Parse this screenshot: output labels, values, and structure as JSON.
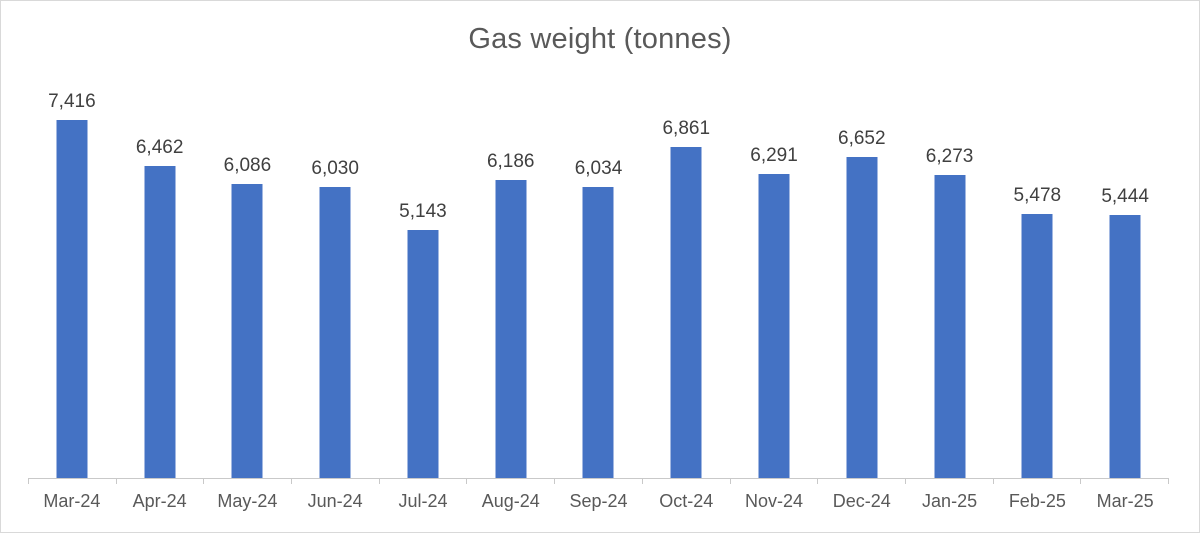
{
  "chart_data": {
    "type": "bar",
    "title": "Gas weight (tonnes)",
    "xlabel": "",
    "ylabel": "",
    "categories": [
      "Mar-24",
      "Apr-24",
      "May-24",
      "Jun-24",
      "Jul-24",
      "Aug-24",
      "Sep-24",
      "Oct-24",
      "Nov-24",
      "Dec-24",
      "Jan-25",
      "Feb-25",
      "Mar-25"
    ],
    "values": [
      7416,
      6462,
      6086,
      6030,
      5143,
      6186,
      6034,
      6861,
      6291,
      6652,
      6273,
      5478,
      5444
    ],
    "value_labels": [
      "7,416",
      "6,462",
      "6,086",
      "6,030",
      "5,143",
      "6,186",
      "6,034",
      "6,861",
      "6,291",
      "6,652",
      "6,273",
      "5,478",
      "5,444"
    ],
    "ylim": [
      0,
      8000
    ],
    "grid": false,
    "legend": "none",
    "data_labels_position": "outside-end"
  },
  "colors": {
    "bar": "#4472C4",
    "title_text": "#595959",
    "data_label_text": "#404040",
    "axis_label_text": "#595959",
    "axis_line": "#C9C9C9",
    "frame_border": "#D9D9D9",
    "background": "#FFFFFF"
  }
}
